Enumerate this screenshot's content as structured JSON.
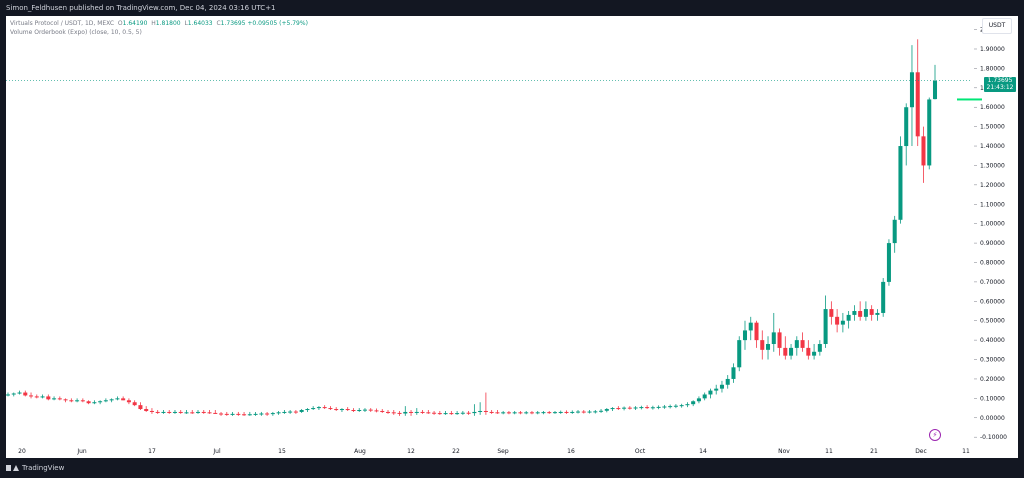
{
  "header": {
    "published": "Simon_Feldhusen published on TradingView.com, Dec 04, 2024 03:16 UTC+1"
  },
  "legend": {
    "symbol": "Virtuals Protocol / USDT, 1D, MEXC",
    "open_label": "O",
    "open": "1.64190",
    "high_label": "H",
    "high": "1.81800",
    "low_label": "L",
    "low": "1.64033",
    "close_label": "C",
    "close": "1.73695",
    "change": "+0.09505 (+5.79%)",
    "indicator": "Volume Orderbook (Expo) (close, 10, 0.5, 5)"
  },
  "currency_button": "USDT",
  "price_tag": {
    "price": "1.73695",
    "countdown": "21:43:12"
  },
  "footer": {
    "brand": "TradingView"
  },
  "colors": {
    "up": "#089981",
    "down": "#f23645",
    "background": "#ffffff",
    "frame": "#131722",
    "volume_bar": "#00e676",
    "flash": "#9c27b0"
  },
  "chart_data": {
    "type": "candlestick",
    "y_ticks": [
      "2.00000",
      "1.90000",
      "1.80000",
      "1.70000",
      "1.60000",
      "1.50000",
      "1.40000",
      "1.30000",
      "1.20000",
      "1.10000",
      "1.00000",
      "0.90000",
      "0.80000",
      "0.70000",
      "0.60000",
      "0.50000",
      "0.40000",
      "0.30000",
      "0.20000",
      "0.10000",
      "0.00000",
      "-0.10000"
    ],
    "x_ticks": [
      "20",
      "Jun",
      "17",
      "Jul",
      "15",
      "Aug",
      "12",
      "22",
      "Sep",
      "16",
      "Oct",
      "14",
      "Nov",
      "11",
      "21",
      "Dec",
      "11"
    ],
    "ylim": [
      -0.13,
      2.07
    ],
    "current_price": 1.73695,
    "candles": [
      [
        0.12,
        0.13,
        0.11,
        0.12
      ],
      [
        0.12,
        0.13,
        0.11,
        0.125
      ],
      [
        0.125,
        0.14,
        0.12,
        0.13
      ],
      [
        0.13,
        0.14,
        0.11,
        0.115
      ],
      [
        0.115,
        0.13,
        0.1,
        0.11
      ],
      [
        0.11,
        0.12,
        0.1,
        0.105
      ],
      [
        0.105,
        0.12,
        0.1,
        0.11
      ],
      [
        0.11,
        0.12,
        0.09,
        0.095
      ],
      [
        0.095,
        0.11,
        0.09,
        0.1
      ],
      [
        0.1,
        0.11,
        0.09,
        0.095
      ],
      [
        0.095,
        0.1,
        0.08,
        0.09
      ],
      [
        0.09,
        0.1,
        0.08,
        0.085
      ],
      [
        0.085,
        0.1,
        0.08,
        0.09
      ],
      [
        0.09,
        0.1,
        0.08,
        0.085
      ],
      [
        0.085,
        0.09,
        0.07,
        0.075
      ],
      [
        0.075,
        0.09,
        0.07,
        0.08
      ],
      [
        0.08,
        0.09,
        0.07,
        0.085
      ],
      [
        0.085,
        0.1,
        0.08,
        0.09
      ],
      [
        0.09,
        0.1,
        0.08,
        0.095
      ],
      [
        0.095,
        0.11,
        0.09,
        0.1
      ],
      [
        0.1,
        0.11,
        0.09,
        0.09
      ],
      [
        0.09,
        0.1,
        0.07,
        0.08
      ],
      [
        0.08,
        0.09,
        0.06,
        0.065
      ],
      [
        0.065,
        0.08,
        0.04,
        0.045
      ],
      [
        0.045,
        0.06,
        0.03,
        0.035
      ],
      [
        0.035,
        0.05,
        0.02,
        0.03
      ],
      [
        0.03,
        0.04,
        0.02,
        0.025
      ],
      [
        0.025,
        0.04,
        0.02,
        0.03
      ],
      [
        0.03,
        0.04,
        0.02,
        0.025
      ],
      [
        0.025,
        0.04,
        0.02,
        0.03
      ],
      [
        0.03,
        0.04,
        0.02,
        0.025
      ],
      [
        0.025,
        0.04,
        0.02,
        0.028
      ],
      [
        0.028,
        0.04,
        0.02,
        0.025
      ],
      [
        0.025,
        0.04,
        0.02,
        0.03
      ],
      [
        0.03,
        0.04,
        0.02,
        0.028
      ],
      [
        0.028,
        0.04,
        0.02,
        0.025
      ],
      [
        0.025,
        0.04,
        0.02,
        0.022
      ],
      [
        0.022,
        0.03,
        0.01,
        0.02
      ],
      [
        0.02,
        0.03,
        0.01,
        0.018
      ],
      [
        0.018,
        0.03,
        0.01,
        0.02
      ],
      [
        0.02,
        0.03,
        0.01,
        0.018
      ],
      [
        0.018,
        0.03,
        0.01,
        0.016
      ],
      [
        0.016,
        0.03,
        0.01,
        0.018
      ],
      [
        0.018,
        0.03,
        0.01,
        0.02
      ],
      [
        0.02,
        0.03,
        0.01,
        0.022
      ],
      [
        0.022,
        0.03,
        0.01,
        0.02
      ],
      [
        0.02,
        0.03,
        0.01,
        0.024
      ],
      [
        0.024,
        0.035,
        0.015,
        0.028
      ],
      [
        0.028,
        0.04,
        0.02,
        0.03
      ],
      [
        0.03,
        0.04,
        0.02,
        0.032
      ],
      [
        0.032,
        0.04,
        0.02,
        0.03
      ],
      [
        0.03,
        0.045,
        0.025,
        0.04
      ],
      [
        0.04,
        0.05,
        0.03,
        0.045
      ],
      [
        0.045,
        0.06,
        0.04,
        0.05
      ],
      [
        0.05,
        0.06,
        0.04,
        0.055
      ],
      [
        0.055,
        0.065,
        0.045,
        0.05
      ],
      [
        0.05,
        0.06,
        0.04,
        0.045
      ],
      [
        0.045,
        0.055,
        0.035,
        0.04
      ],
      [
        0.04,
        0.05,
        0.03,
        0.045
      ],
      [
        0.045,
        0.055,
        0.035,
        0.04
      ],
      [
        0.04,
        0.05,
        0.03,
        0.038
      ],
      [
        0.038,
        0.05,
        0.03,
        0.04
      ],
      [
        0.04,
        0.05,
        0.03,
        0.042
      ],
      [
        0.042,
        0.05,
        0.03,
        0.038
      ],
      [
        0.038,
        0.048,
        0.028,
        0.035
      ],
      [
        0.035,
        0.045,
        0.025,
        0.03
      ],
      [
        0.03,
        0.04,
        0.02,
        0.028
      ],
      [
        0.028,
        0.04,
        0.015,
        0.025
      ],
      [
        0.025,
        0.035,
        0.01,
        0.022
      ],
      [
        0.022,
        0.06,
        0.01,
        0.03
      ],
      [
        0.03,
        0.04,
        0.01,
        0.025
      ],
      [
        0.025,
        0.05,
        0.015,
        0.03
      ],
      [
        0.03,
        0.04,
        0.02,
        0.028
      ],
      [
        0.028,
        0.04,
        0.02,
        0.026
      ],
      [
        0.026,
        0.035,
        0.015,
        0.024
      ],
      [
        0.024,
        0.035,
        0.015,
        0.022
      ],
      [
        0.022,
        0.035,
        0.015,
        0.024
      ],
      [
        0.024,
        0.035,
        0.015,
        0.022
      ],
      [
        0.022,
        0.035,
        0.015,
        0.024
      ],
      [
        0.024,
        0.035,
        0.015,
        0.026
      ],
      [
        0.026,
        0.035,
        0.015,
        0.024
      ],
      [
        0.024,
        0.07,
        0.01,
        0.03
      ],
      [
        0.03,
        0.08,
        0.015,
        0.035
      ],
      [
        0.035,
        0.13,
        0.015,
        0.03
      ],
      [
        0.03,
        0.04,
        0.02,
        0.028
      ],
      [
        0.028,
        0.04,
        0.02,
        0.026
      ],
      [
        0.026,
        0.035,
        0.018,
        0.028
      ],
      [
        0.028,
        0.035,
        0.018,
        0.026
      ],
      [
        0.026,
        0.035,
        0.018,
        0.028
      ],
      [
        0.028,
        0.035,
        0.018,
        0.027
      ],
      [
        0.027,
        0.035,
        0.018,
        0.028
      ],
      [
        0.028,
        0.035,
        0.018,
        0.027
      ],
      [
        0.027,
        0.035,
        0.018,
        0.028
      ],
      [
        0.028,
        0.035,
        0.018,
        0.029
      ],
      [
        0.029,
        0.035,
        0.02,
        0.028
      ],
      [
        0.028,
        0.035,
        0.02,
        0.029
      ],
      [
        0.029,
        0.037,
        0.02,
        0.03
      ],
      [
        0.03,
        0.038,
        0.02,
        0.029
      ],
      [
        0.029,
        0.038,
        0.02,
        0.03
      ],
      [
        0.03,
        0.04,
        0.022,
        0.032
      ],
      [
        0.032,
        0.04,
        0.022,
        0.031
      ],
      [
        0.031,
        0.04,
        0.022,
        0.032
      ],
      [
        0.032,
        0.04,
        0.022,
        0.033
      ],
      [
        0.033,
        0.045,
        0.025,
        0.036
      ],
      [
        0.036,
        0.05,
        0.028,
        0.045
      ],
      [
        0.045,
        0.055,
        0.035,
        0.05
      ],
      [
        0.05,
        0.06,
        0.04,
        0.048
      ],
      [
        0.048,
        0.058,
        0.038,
        0.052
      ],
      [
        0.052,
        0.06,
        0.042,
        0.05
      ],
      [
        0.05,
        0.06,
        0.04,
        0.053
      ],
      [
        0.053,
        0.062,
        0.043,
        0.055
      ],
      [
        0.055,
        0.065,
        0.045,
        0.052
      ],
      [
        0.052,
        0.062,
        0.042,
        0.054
      ],
      [
        0.054,
        0.064,
        0.044,
        0.056
      ],
      [
        0.056,
        0.066,
        0.046,
        0.058
      ],
      [
        0.058,
        0.068,
        0.048,
        0.06
      ],
      [
        0.06,
        0.07,
        0.05,
        0.062
      ],
      [
        0.062,
        0.072,
        0.052,
        0.065
      ],
      [
        0.065,
        0.08,
        0.055,
        0.07
      ],
      [
        0.07,
        0.09,
        0.06,
        0.085
      ],
      [
        0.085,
        0.11,
        0.075,
        0.1
      ],
      [
        0.1,
        0.13,
        0.09,
        0.12
      ],
      [
        0.12,
        0.15,
        0.1,
        0.14
      ],
      [
        0.14,
        0.17,
        0.12,
        0.15
      ],
      [
        0.15,
        0.19,
        0.13,
        0.17
      ],
      [
        0.17,
        0.22,
        0.15,
        0.2
      ],
      [
        0.2,
        0.28,
        0.18,
        0.26
      ],
      [
        0.26,
        0.42,
        0.24,
        0.4
      ],
      [
        0.4,
        0.5,
        0.35,
        0.45
      ],
      [
        0.45,
        0.52,
        0.4,
        0.49
      ],
      [
        0.49,
        0.5,
        0.36,
        0.4
      ],
      [
        0.4,
        0.45,
        0.3,
        0.35
      ],
      [
        0.35,
        0.42,
        0.3,
        0.38
      ],
      [
        0.38,
        0.54,
        0.34,
        0.44
      ],
      [
        0.44,
        0.46,
        0.32,
        0.36
      ],
      [
        0.36,
        0.42,
        0.3,
        0.32
      ],
      [
        0.32,
        0.38,
        0.3,
        0.36
      ],
      [
        0.36,
        0.42,
        0.32,
        0.4
      ],
      [
        0.4,
        0.44,
        0.34,
        0.36
      ],
      [
        0.36,
        0.4,
        0.3,
        0.32
      ],
      [
        0.32,
        0.38,
        0.3,
        0.34
      ],
      [
        0.34,
        0.4,
        0.32,
        0.38
      ],
      [
        0.38,
        0.63,
        0.36,
        0.56
      ],
      [
        0.56,
        0.6,
        0.48,
        0.52
      ],
      [
        0.52,
        0.56,
        0.44,
        0.48
      ],
      [
        0.48,
        0.54,
        0.44,
        0.5
      ],
      [
        0.5,
        0.55,
        0.46,
        0.53
      ],
      [
        0.53,
        0.58,
        0.5,
        0.55
      ],
      [
        0.55,
        0.6,
        0.5,
        0.52
      ],
      [
        0.52,
        0.6,
        0.5,
        0.56
      ],
      [
        0.56,
        0.58,
        0.5,
        0.53
      ],
      [
        0.53,
        0.56,
        0.5,
        0.54
      ],
      [
        0.54,
        0.72,
        0.52,
        0.7
      ],
      [
        0.7,
        0.92,
        0.68,
        0.9
      ],
      [
        0.9,
        1.04,
        0.85,
        1.02
      ],
      [
        1.02,
        1.45,
        1.0,
        1.4
      ],
      [
        1.4,
        1.62,
        1.3,
        1.6
      ],
      [
        1.6,
        1.92,
        1.4,
        1.78
      ],
      [
        1.78,
        1.95,
        1.4,
        1.45
      ],
      [
        1.45,
        1.5,
        1.21,
        1.3
      ],
      [
        1.3,
        1.65,
        1.28,
        1.64
      ],
      [
        1.6419,
        1.818,
        1.64033,
        1.73695
      ]
    ],
    "volume_level": 1.64
  }
}
